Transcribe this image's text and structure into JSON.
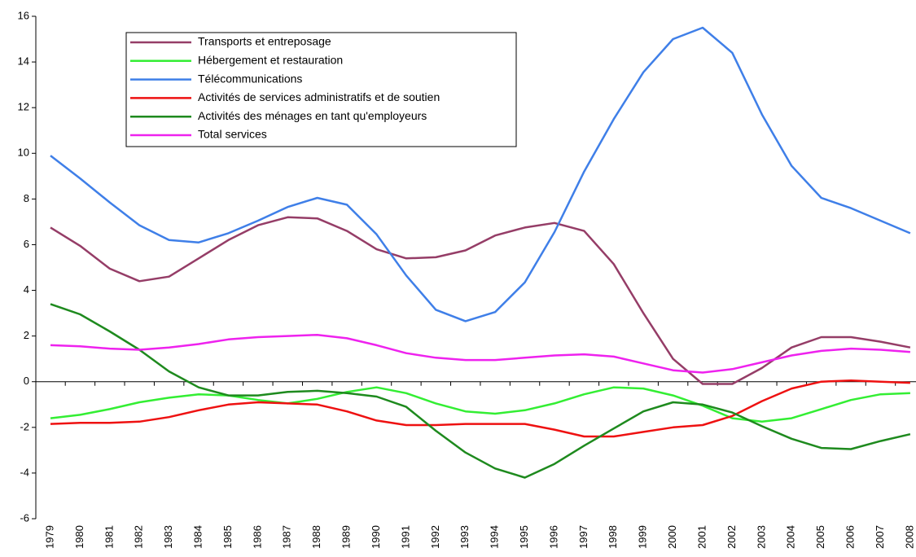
{
  "chart_data": {
    "type": "line",
    "categories": [
      "1979",
      "1980",
      "1981",
      "1982",
      "1983",
      "1984",
      "1985",
      "1986",
      "1987",
      "1988",
      "1989",
      "1990",
      "1991",
      "1992",
      "1993",
      "1994",
      "1995",
      "1996",
      "1997",
      "1998",
      "1999",
      "2000",
      "2001",
      "2002",
      "2003",
      "2004",
      "2005",
      "2006",
      "2007",
      "2008"
    ],
    "series": [
      {
        "name": "Transports et entreposage",
        "color": "#953d67",
        "values": [
          6.75,
          5.95,
          4.95,
          4.4,
          4.6,
          5.4,
          6.2,
          6.85,
          7.2,
          7.15,
          6.6,
          5.8,
          5.4,
          5.45,
          5.75,
          6.4,
          6.75,
          6.95,
          6.6,
          5.15,
          3.0,
          1.0,
          -0.1,
          -0.1,
          0.6,
          1.5,
          1.95,
          1.95,
          1.75,
          1.5
        ]
      },
      {
        "name": "Hébergement et restauration",
        "color": "#33ee33",
        "values": [
          -1.6,
          -1.45,
          -1.2,
          -0.9,
          -0.7,
          -0.55,
          -0.6,
          -0.8,
          -0.95,
          -0.75,
          -0.45,
          -0.25,
          -0.5,
          -0.95,
          -1.3,
          -1.4,
          -1.25,
          -0.95,
          -0.55,
          -0.25,
          -0.3,
          -0.6,
          -1.05,
          -1.6,
          -1.75,
          -1.6,
          -1.2,
          -0.8,
          -0.55,
          -0.5
        ]
      },
      {
        "name": "Télécommunications",
        "color": "#3f7fe8",
        "values": [
          9.9,
          8.9,
          7.85,
          6.85,
          6.2,
          6.1,
          6.5,
          7.05,
          7.65,
          8.05,
          7.75,
          6.45,
          4.65,
          3.15,
          2.65,
          3.05,
          4.35,
          6.55,
          9.2,
          11.5,
          13.55,
          15.0,
          15.5,
          14.4,
          11.7,
          9.45,
          8.05,
          7.6,
          7.05,
          6.5
        ]
      },
      {
        "name": "Activités de services administratifs et de soutien",
        "color": "#ee1111",
        "values": [
          -1.85,
          -1.8,
          -1.8,
          -1.75,
          -1.55,
          -1.25,
          -1.0,
          -0.9,
          -0.95,
          -1.0,
          -1.3,
          -1.7,
          -1.9,
          -1.9,
          -1.85,
          -1.85,
          -1.85,
          -2.1,
          -2.4,
          -2.4,
          -2.2,
          -2.0,
          -1.9,
          -1.5,
          -0.85,
          -0.3,
          0.0,
          0.05,
          0.0,
          -0.05
        ]
      },
      {
        "name": "Activités des ménages en tant qu'employeurs",
        "color": "#1e8a1e",
        "values": [
          3.4,
          2.95,
          2.2,
          1.4,
          0.45,
          -0.25,
          -0.6,
          -0.6,
          -0.45,
          -0.4,
          -0.5,
          -0.65,
          -1.1,
          -2.15,
          -3.1,
          -3.8,
          -4.2,
          -3.6,
          -2.8,
          -2.05,
          -1.3,
          -0.9,
          -1.0,
          -1.35,
          -1.95,
          -2.5,
          -2.9,
          -2.95,
          -2.6,
          -2.3
        ]
      },
      {
        "name": "Total services",
        "color": "#ee22ee",
        "values": [
          1.6,
          1.55,
          1.45,
          1.4,
          1.5,
          1.65,
          1.85,
          1.95,
          2.0,
          2.05,
          1.9,
          1.6,
          1.25,
          1.05,
          0.95,
          0.95,
          1.05,
          1.15,
          1.2,
          1.1,
          0.8,
          0.5,
          0.4,
          0.55,
          0.85,
          1.15,
          1.35,
          1.45,
          1.4,
          1.3
        ]
      }
    ],
    "ylim": [
      -6,
      16
    ],
    "yticks": [
      -6,
      -4,
      -2,
      0,
      2,
      4,
      6,
      8,
      10,
      12,
      14,
      16
    ],
    "legend": "upper left"
  }
}
